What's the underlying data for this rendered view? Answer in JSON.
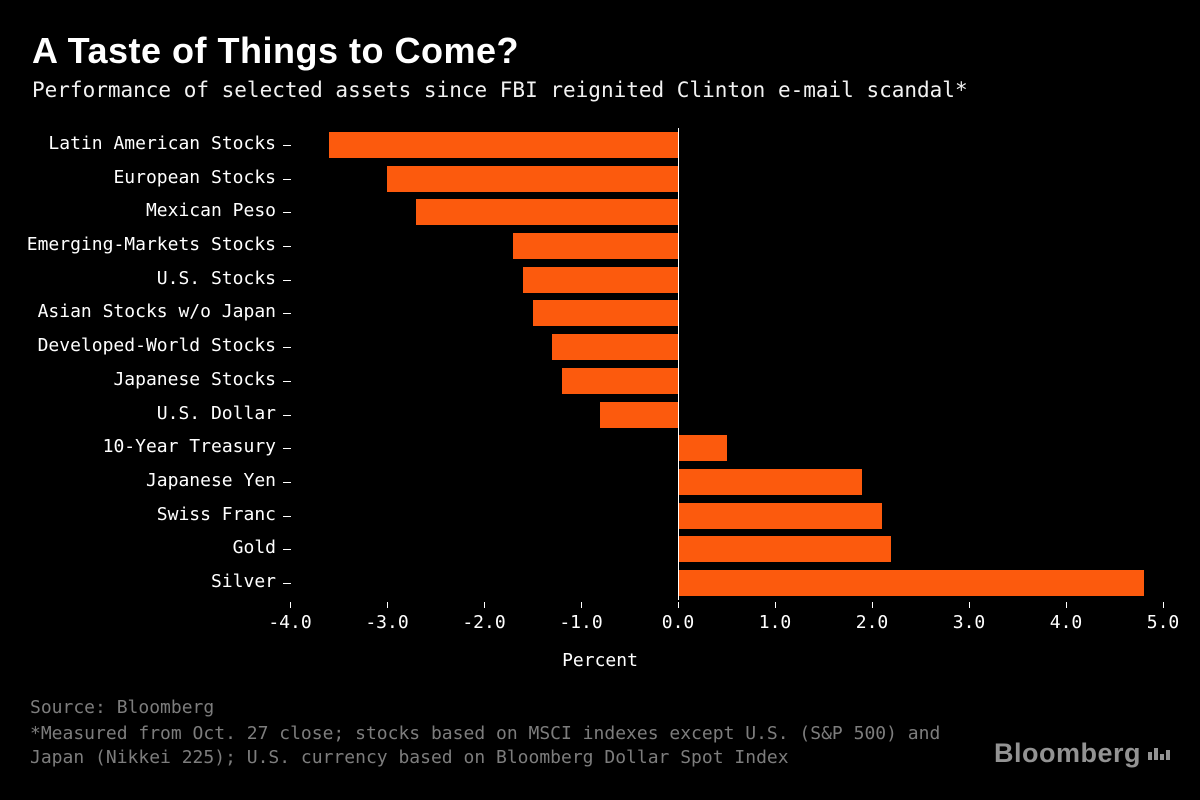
{
  "title": "A Taste of Things to Come?",
  "subtitle": "Performance of selected assets since FBI reignited Clinton e-mail scandal*",
  "chart_data": {
    "type": "bar",
    "orientation": "horizontal",
    "categories": [
      "Latin American Stocks",
      "European Stocks",
      "Mexican Peso",
      "Emerging-Markets Stocks",
      "U.S. Stocks",
      "Asian Stocks w/o Japan",
      "Developed-World Stocks",
      "Japanese Stocks",
      "U.S. Dollar",
      "10-Year Treasury",
      "Japanese Yen",
      "Swiss Franc",
      "Gold",
      "Silver"
    ],
    "values": [
      -3.6,
      -3.0,
      -2.7,
      -1.7,
      -1.6,
      -1.5,
      -1.3,
      -1.2,
      -0.8,
      0.5,
      1.9,
      2.1,
      2.2,
      4.8
    ],
    "xlabel": "Percent",
    "xlim": [
      -4.0,
      5.0
    ],
    "xticks": [
      -4.0,
      -3.0,
      -2.0,
      -1.0,
      0.0,
      1.0,
      2.0,
      3.0,
      4.0,
      5.0
    ],
    "xtick_labels": [
      "-4.0",
      "-3.0",
      "-2.0",
      "-1.0",
      "0.0",
      "1.0",
      "2.0",
      "3.0",
      "4.0",
      "5.0"
    ],
    "grid": false,
    "legend": null,
    "colors": {
      "bar": "#fc5a0d",
      "background": "#000000",
      "text": "#ffffff",
      "muted": "#7d7d7d",
      "axis": "#ffffff"
    }
  },
  "footer": {
    "source": "Source: Bloomberg",
    "note": "*Measured from Oct. 27 close; stocks based on MSCI indexes except U.S. (S&P 500) and Japan (Nikkei 225); U.S. currency based on Bloomberg Dollar Spot Index",
    "logo": "Bloomberg"
  }
}
